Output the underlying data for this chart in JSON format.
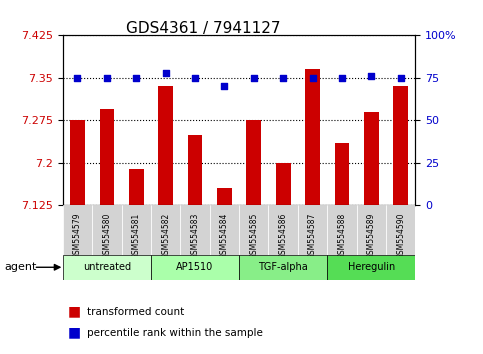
{
  "title": "GDS4361 / 7941127",
  "samples": [
    "GSM554579",
    "GSM554580",
    "GSM554581",
    "GSM554582",
    "GSM554583",
    "GSM554584",
    "GSM554585",
    "GSM554586",
    "GSM554587",
    "GSM554588",
    "GSM554589",
    "GSM554590"
  ],
  "bar_values": [
    7.275,
    7.295,
    7.19,
    7.335,
    7.25,
    7.155,
    7.275,
    7.2,
    7.365,
    7.235,
    7.29,
    7.335
  ],
  "dot_values": [
    75,
    75,
    75,
    78,
    75,
    70,
    75,
    75,
    75,
    75,
    76,
    75
  ],
  "bar_color": "#cc0000",
  "dot_color": "#0000cc",
  "ymin": 7.125,
  "ymax": 7.425,
  "y2min": 0,
  "y2max": 100,
  "yticks": [
    7.125,
    7.2,
    7.275,
    7.35,
    7.425
  ],
  "y2ticks": [
    0,
    25,
    50,
    75,
    100
  ],
  "groups": [
    {
      "label": "untreated",
      "start": 0,
      "end": 3,
      "color": "#ccffcc"
    },
    {
      "label": "AP1510",
      "start": 3,
      "end": 6,
      "color": "#aaffaa"
    },
    {
      "label": "TGF-alpha",
      "start": 6,
      "end": 9,
      "color": "#88ee88"
    },
    {
      "label": "Heregulin",
      "start": 9,
      "end": 12,
      "color": "#55dd55"
    }
  ],
  "legend_bar_label": "transformed count",
  "legend_dot_label": "percentile rank within the sample",
  "agent_label": "agent",
  "xlabel_color": "#cc0000",
  "y2label_color": "#0000cc",
  "grid_color": "#000000",
  "background_color": "#ffffff",
  "plot_bg": "#ffffff",
  "bar_width": 0.5
}
